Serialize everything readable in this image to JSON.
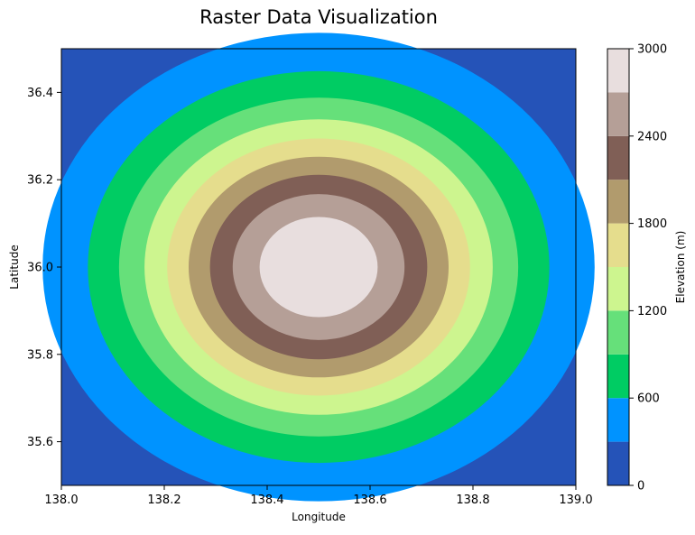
{
  "chart_data": {
    "type": "heatmap",
    "subtype": "filled-contour",
    "title": "Raster Data Visualization",
    "xlabel": "Longitude",
    "ylabel": "Latitude",
    "xlim": [
      138.0,
      139.0
    ],
    "ylim": [
      35.5,
      36.5
    ],
    "x_ticks": [
      "138.0",
      "138.2",
      "138.4",
      "138.6",
      "138.8",
      "139.0"
    ],
    "x_tick_values": [
      138.0,
      138.2,
      138.4,
      138.6,
      138.8,
      139.0
    ],
    "y_ticks": [
      "35.6",
      "35.8",
      "36.0",
      "36.2",
      "36.4"
    ],
    "y_tick_values": [
      35.6,
      35.8,
      36.0,
      36.2,
      36.4
    ],
    "grid": false,
    "surface": {
      "shape": "gaussian",
      "center": [
        138.5,
        36.0
      ],
      "peak": 3000,
      "sigma_deg": 0.25
    },
    "contour_levels": [
      0,
      300,
      600,
      900,
      1200,
      1500,
      1800,
      2100,
      2400,
      2700,
      3000
    ],
    "level_colors": [
      "#2553b8",
      "#0093ff",
      "#00cc63",
      "#66e07a",
      "#cdf58f",
      "#e5dd8d",
      "#b19b6d",
      "#805f56",
      "#b59f97",
      "#e8dede"
    ],
    "colorbar": {
      "label": "Elevation (m)",
      "ticks": [
        "0",
        "600",
        "1200",
        "1800",
        "2400",
        "3000"
      ],
      "tick_values": [
        0,
        600,
        1200,
        1800,
        2400,
        3000
      ],
      "placement": "right"
    }
  }
}
